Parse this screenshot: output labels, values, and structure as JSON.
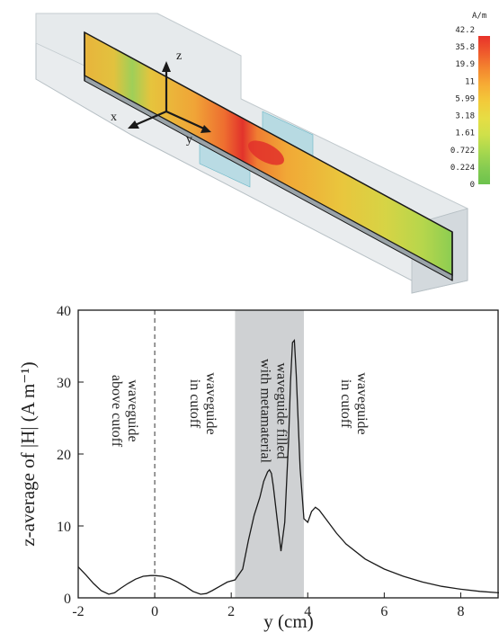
{
  "top_panel": {
    "unit": "A/m",
    "colorbar_labels": [
      "42.2",
      "35.8",
      "19.9",
      "11",
      "5.99",
      "3.18",
      "1.61",
      "0.722",
      "0.224",
      "0"
    ],
    "colorbar_colors": [
      "#e8322a",
      "#ef5a2c",
      "#f4872f",
      "#f6ad35",
      "#f2cb3a",
      "#e6dd44",
      "#cfe04a",
      "#a8d84e",
      "#86cc51",
      "#6cc24d"
    ],
    "axis_labels": {
      "x": "x",
      "y": "y",
      "z": "z"
    }
  },
  "chart_data": {
    "type": "line",
    "xlabel": "y (cm)",
    "ylabel": "z-average of |H| (A m⁻¹)",
    "xlim": [
      -2,
      9
    ],
    "ylim": [
      0,
      40
    ],
    "xticks": [
      -2,
      0,
      2,
      4,
      6,
      8
    ],
    "yticks": [
      0,
      10,
      20,
      30,
      40
    ],
    "grid": false,
    "shaded_region": {
      "x_start": 2.1,
      "x_end": 3.9,
      "color": "#cfd1d3"
    },
    "dashed_line_x": 0,
    "annotations": [
      {
        "lines": [
          "waveguide",
          "above cutoff"
        ],
        "x": -0.9,
        "y": 26
      },
      {
        "lines": [
          "waveguide",
          "in cutoff"
        ],
        "x": 1.15,
        "y": 27
      },
      {
        "lines": [
          "waveguide filled",
          "with metamaterial"
        ],
        "x": 3.0,
        "y": 26
      },
      {
        "lines": [
          "waveguide",
          "in cutoff"
        ],
        "x": 5.1,
        "y": 27
      }
    ],
    "series": [
      {
        "x": [
          -2.0,
          -1.8,
          -1.6,
          -1.4,
          -1.2,
          -1.05,
          -0.9,
          -0.7,
          -0.5,
          -0.3,
          -0.1,
          0.0,
          0.2,
          0.4,
          0.6,
          0.8,
          1.0,
          1.2,
          1.35,
          1.5,
          1.7,
          1.9,
          2.1,
          2.3,
          2.45,
          2.6,
          2.75,
          2.85,
          2.95,
          3.0,
          3.05,
          3.1,
          3.2,
          3.3,
          3.4,
          3.5,
          3.55,
          3.6,
          3.65,
          3.7,
          3.8,
          3.9,
          4.0,
          4.1,
          4.2,
          4.3,
          4.5,
          4.75,
          5.0,
          5.5,
          6.0,
          6.5,
          7.0,
          7.5,
          8.0,
          8.5,
          9.0
        ],
        "y": [
          4.3,
          3.2,
          2.0,
          1.0,
          0.5,
          0.7,
          1.3,
          2.0,
          2.6,
          3.0,
          3.1,
          3.1,
          3.0,
          2.7,
          2.2,
          1.6,
          0.9,
          0.5,
          0.6,
          1.0,
          1.6,
          2.2,
          2.5,
          4.0,
          8.0,
          11.5,
          14.0,
          16.2,
          17.5,
          17.8,
          17.3,
          15.5,
          11.0,
          6.5,
          10.5,
          22.0,
          30.0,
          35.5,
          35.8,
          31.0,
          18.0,
          11.0,
          10.5,
          12.0,
          12.6,
          12.2,
          10.8,
          9.0,
          7.5,
          5.4,
          4.0,
          3.0,
          2.2,
          1.6,
          1.2,
          0.9,
          0.7
        ]
      }
    ]
  }
}
